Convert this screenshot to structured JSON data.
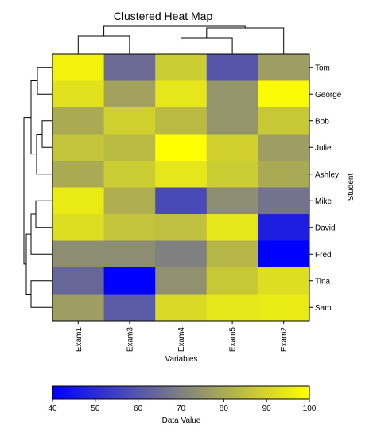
{
  "chart_data": {
    "type": "heatmap",
    "title": "Clustered Heat Map",
    "xlabel": "Variables",
    "ylabel": "Student",
    "columns": [
      "Exam1",
      "Exam3",
      "Exam4",
      "Exam5",
      "Exam2"
    ],
    "rows": [
      "Tom",
      "George",
      "Bob",
      "Julie",
      "Ashley",
      "Mike",
      "David",
      "Fred",
      "Tina",
      "Sam"
    ],
    "values": [
      [
        97,
        65,
        88,
        60,
        77
      ],
      [
        93,
        78,
        94,
        75,
        99
      ],
      [
        80,
        89,
        84,
        75,
        87
      ],
      [
        86,
        84,
        100,
        89,
        77
      ],
      [
        80,
        88,
        94,
        88,
        80
      ],
      [
        95,
        81,
        57,
        73,
        67
      ],
      [
        92,
        86,
        85,
        94,
        47
      ],
      [
        73,
        73,
        70,
        83,
        40
      ],
      [
        64,
        40,
        74,
        87,
        92
      ],
      [
        77,
        61,
        91,
        94,
        95
      ]
    ],
    "colorbar": {
      "label": "Data Value",
      "min": 40,
      "max": 100,
      "ticks": [
        40,
        50,
        60,
        70,
        80,
        90,
        100
      ],
      "low_color": "#0000ff",
      "mid_color": "#808080",
      "high_color": "#ffff00"
    },
    "column_dendrogram": [
      [
        "Exam1",
        "Exam3"
      ],
      [
        [
          "Exam4",
          "Exam5"
        ],
        "Exam2"
      ],
      "root"
    ],
    "row_dendrogram": "hierarchical clustering of students"
  }
}
